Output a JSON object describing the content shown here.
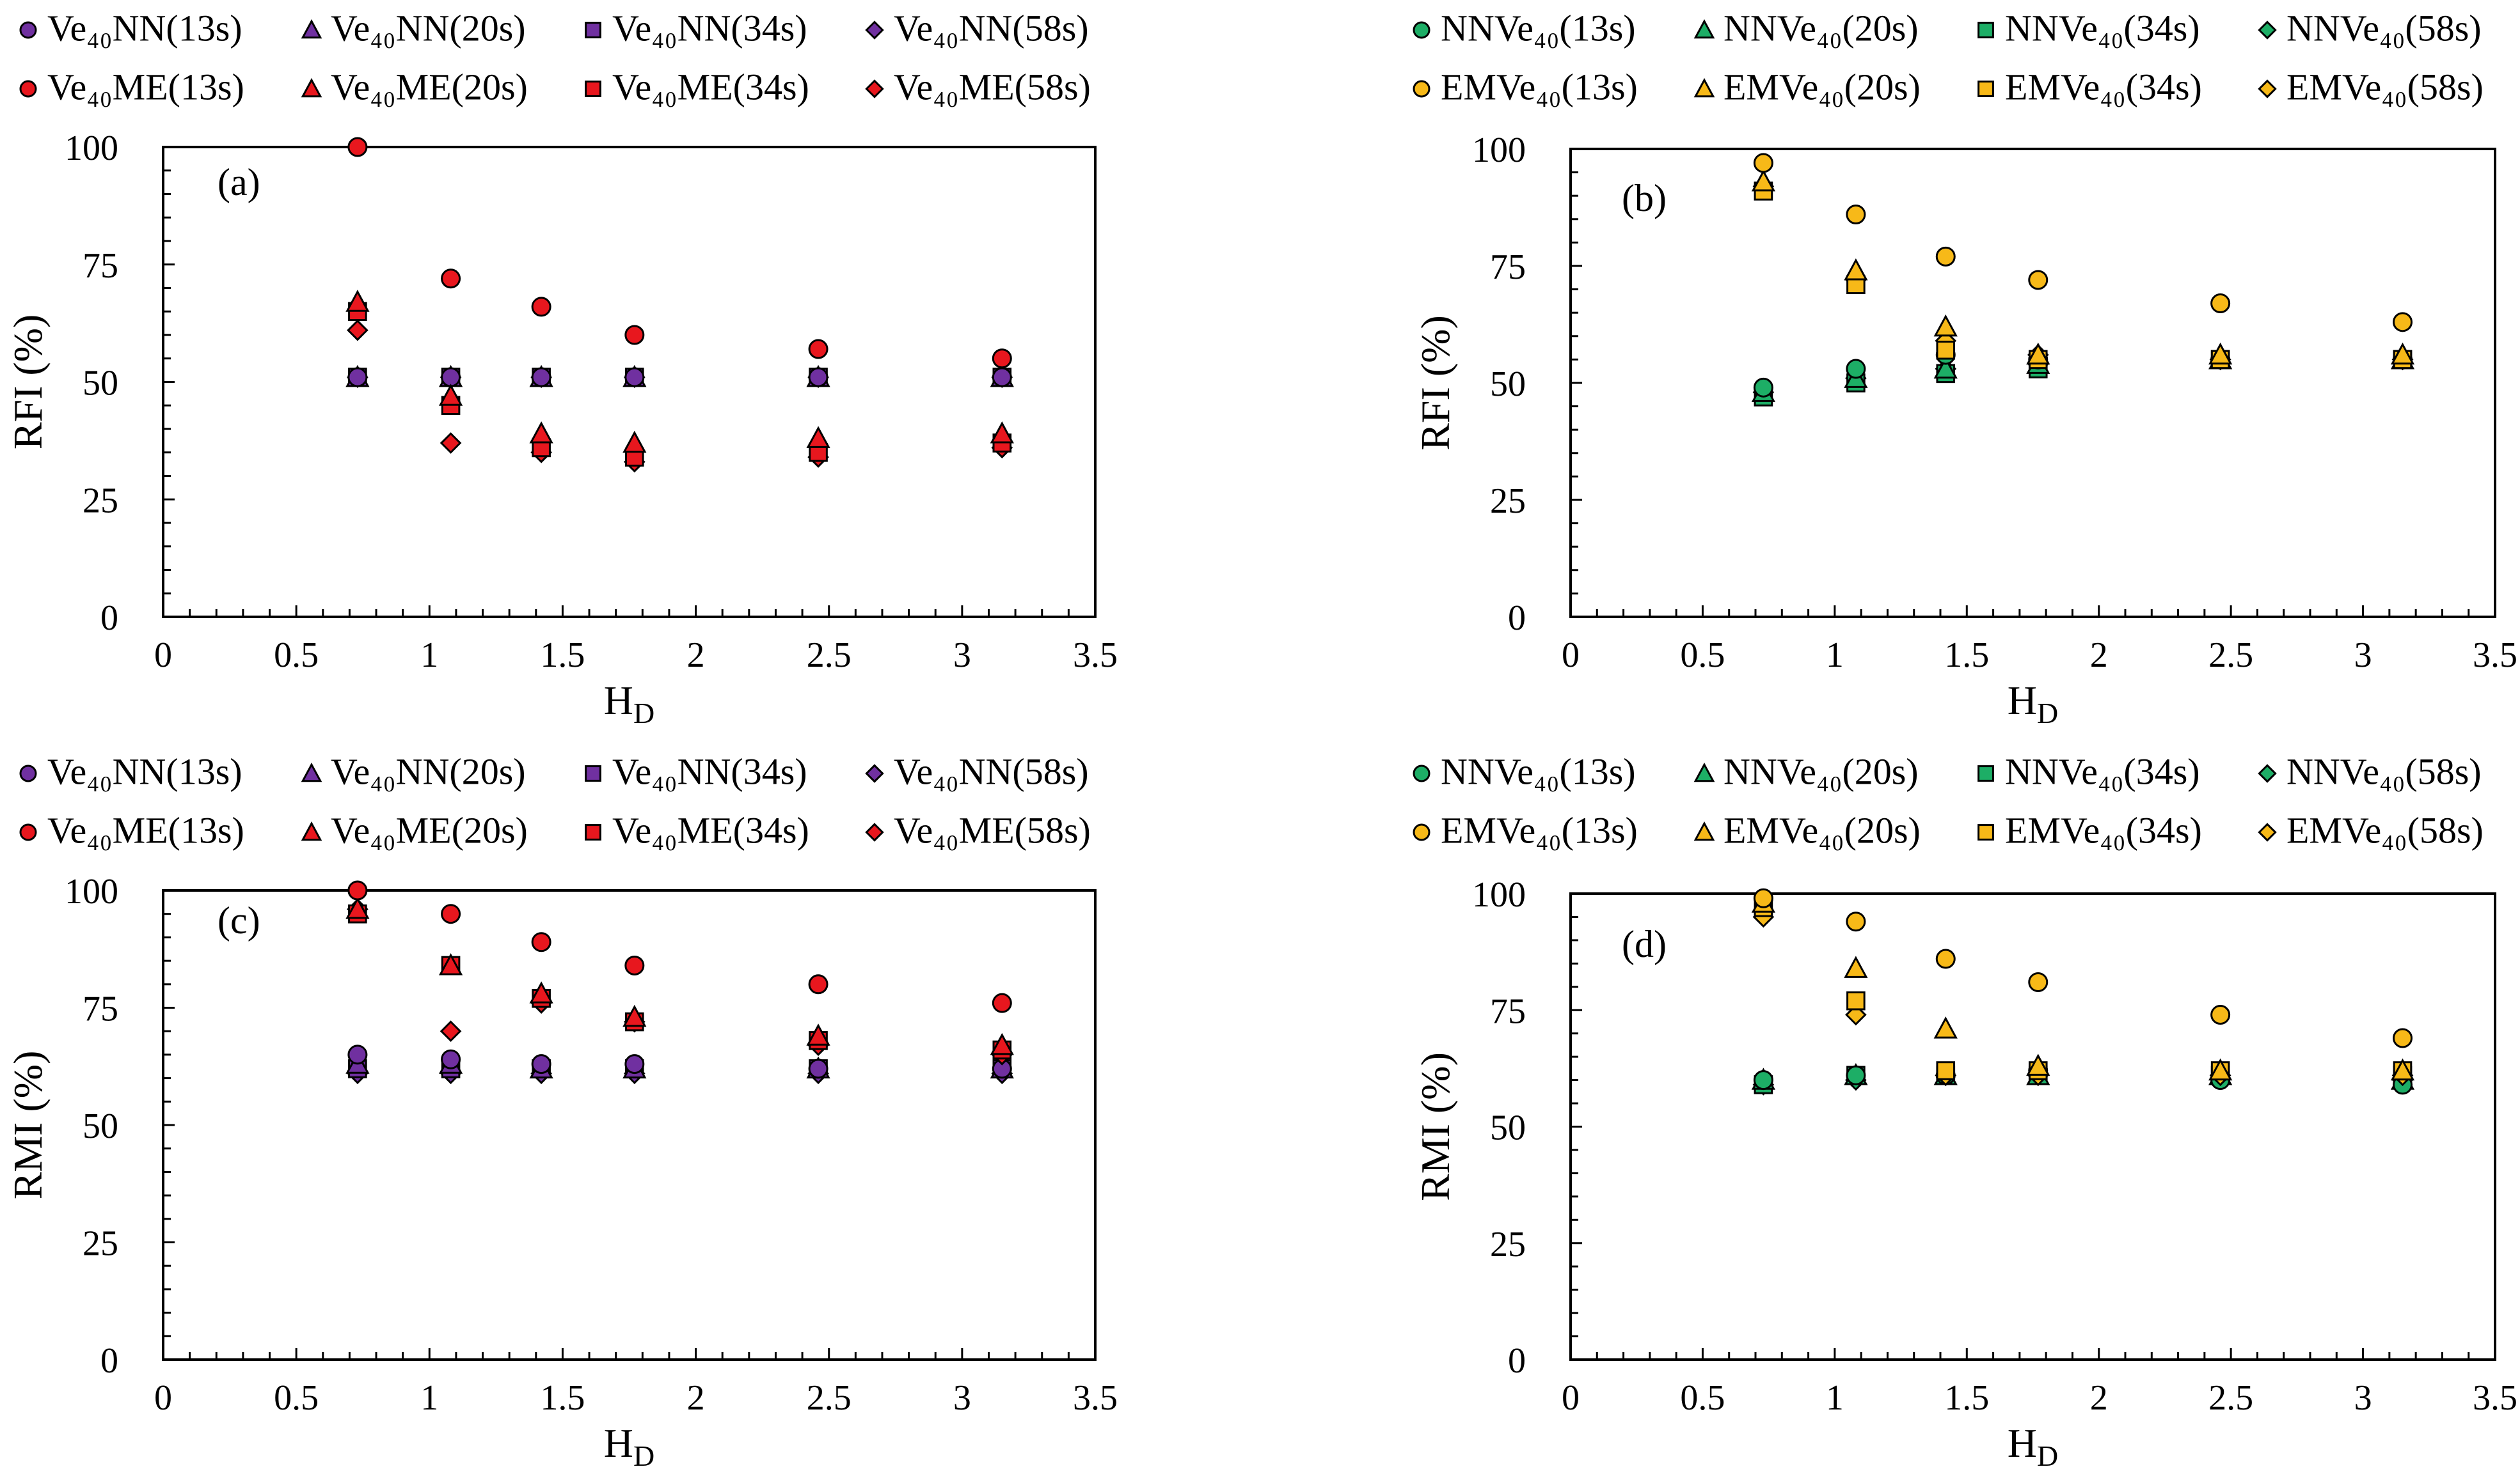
{
  "legend_markers": {
    "13s": "circle-marker",
    "20s": "triangle-marker",
    "34s": "square-marker",
    "58s": "diamond-marker"
  },
  "colors": {
    "purple": "#7030A0",
    "red": "#E8171E",
    "green": "#1DAE66",
    "yellow": "#F7B918",
    "stroke": "#000000"
  },
  "chart_data": [
    {
      "type": "scatter",
      "panel_label": "(a)",
      "xlabel": "H",
      "xlabel_sub": "D",
      "ylabel": "RFI (%)",
      "xlim": [
        0,
        3.5
      ],
      "ylim": [
        0,
        100
      ],
      "x_ticks": [
        "0",
        "0.5",
        "1",
        "1.5",
        "2",
        "2.5",
        "3",
        "3.5"
      ],
      "y_ticks": [
        "0",
        "25",
        "50",
        "75",
        "100"
      ],
      "x": [
        0.73,
        1.08,
        1.42,
        1.77,
        2.46,
        3.15
      ],
      "series": [
        {
          "name": "Ve₄₀NN(13s)",
          "marker": "circle",
          "color": "purple",
          "values": [
            51,
            51,
            51,
            51,
            51,
            51
          ]
        },
        {
          "name": "Ve₄₀NN(20s)",
          "marker": "triangle",
          "color": "purple",
          "values": [
            51,
            51,
            51,
            51,
            51,
            51
          ]
        },
        {
          "name": "Ve₄₀NN(34s)",
          "marker": "square",
          "color": "purple",
          "values": [
            51,
            51,
            51,
            51,
            51,
            51
          ]
        },
        {
          "name": "Ve₄₀NN(58s)",
          "marker": "diamond",
          "color": "purple",
          "values": [
            51,
            51,
            51,
            51,
            51,
            51
          ]
        },
        {
          "name": "Ve₄₀ME(13s)",
          "marker": "circle",
          "color": "red",
          "values": [
            100,
            72,
            66,
            60,
            57,
            55
          ]
        },
        {
          "name": "Ve₄₀ME(20s)",
          "marker": "triangle",
          "color": "red",
          "values": [
            67,
            47,
            39,
            37,
            38,
            39
          ]
        },
        {
          "name": "Ve₄₀ME(34s)",
          "marker": "square",
          "color": "red",
          "values": [
            65,
            45,
            36,
            34,
            35,
            37
          ]
        },
        {
          "name": "Ve₄₀ME(58s)",
          "marker": "diamond",
          "color": "red",
          "values": [
            61,
            37,
            35,
            33,
            34,
            36
          ]
        }
      ]
    },
    {
      "type": "scatter",
      "panel_label": "(b)",
      "xlabel": "H",
      "xlabel_sub": "D",
      "ylabel": "RFI (%)",
      "xlim": [
        0,
        3.5
      ],
      "ylim": [
        0,
        100
      ],
      "x_ticks": [
        "0",
        "0.5",
        "1",
        "1.5",
        "2",
        "2.5",
        "3",
        "3.5"
      ],
      "y_ticks": [
        "0",
        "25",
        "50",
        "75",
        "100"
      ],
      "x": [
        0.73,
        1.08,
        1.42,
        1.77,
        2.46,
        3.15
      ],
      "series": [
        {
          "name": "NNVe₄₀(13s)",
          "marker": "circle",
          "color": "green",
          "values": [
            49,
            53,
            56,
            55,
            55,
            55
          ]
        },
        {
          "name": "NNVe₄₀(20s)",
          "marker": "triangle",
          "color": "green",
          "values": [
            48,
            51,
            53,
            54,
            55,
            55
          ]
        },
        {
          "name": "NNVe₄₀(34s)",
          "marker": "square",
          "color": "green",
          "values": [
            47,
            50,
            52,
            53,
            55,
            55
          ]
        },
        {
          "name": "NNVe₄₀(58s)",
          "marker": "diamond",
          "color": "green",
          "values": [
            48,
            51,
            53,
            54,
            55,
            55
          ]
        },
        {
          "name": "EMVe₄₀(13s)",
          "marker": "circle",
          "color": "yellow",
          "values": [
            97,
            86,
            77,
            72,
            67,
            63
          ]
        },
        {
          "name": "EMVe₄₀(20s)",
          "marker": "triangle",
          "color": "yellow",
          "values": [
            93,
            74,
            62,
            56,
            56,
            56
          ]
        },
        {
          "name": "EMVe₄₀(34s)",
          "marker": "square",
          "color": "yellow",
          "values": [
            91,
            71,
            57,
            55,
            55,
            55
          ]
        },
        {
          "name": "EMVe₄₀(58s)",
          "marker": "diamond",
          "color": "yellow",
          "values": [
            92,
            72,
            59,
            56,
            55,
            55
          ]
        }
      ]
    },
    {
      "type": "scatter",
      "panel_label": "(c)",
      "xlabel": "H",
      "xlabel_sub": "D",
      "ylabel": "RMI (%)",
      "xlim": [
        0,
        3.5
      ],
      "ylim": [
        0,
        100
      ],
      "x_ticks": [
        "0",
        "0.5",
        "1",
        "1.5",
        "2",
        "2.5",
        "3",
        "3.5"
      ],
      "y_ticks": [
        "0",
        "25",
        "50",
        "75",
        "100"
      ],
      "x": [
        0.73,
        1.08,
        1.42,
        1.77,
        2.46,
        3.15
      ],
      "series": [
        {
          "name": "Ve₄₀NN(13s)",
          "marker": "circle",
          "color": "purple",
          "values": [
            65,
            64,
            63,
            63,
            62,
            62
          ]
        },
        {
          "name": "Ve₄₀NN(20s)",
          "marker": "triangle",
          "color": "purple",
          "values": [
            63,
            63,
            62,
            62,
            62,
            62
          ]
        },
        {
          "name": "Ve₄₀NN(34s)",
          "marker": "square",
          "color": "purple",
          "values": [
            62,
            62,
            62,
            62,
            62,
            62
          ]
        },
        {
          "name": "Ve₄₀NN(58s)",
          "marker": "diamond",
          "color": "purple",
          "values": [
            61,
            61,
            61,
            61,
            61,
            61
          ]
        },
        {
          "name": "Ve₄₀ME(13s)",
          "marker": "circle",
          "color": "red",
          "values": [
            100,
            95,
            89,
            84,
            80,
            76
          ]
        },
        {
          "name": "Ve₄₀ME(20s)",
          "marker": "triangle",
          "color": "red",
          "values": [
            96,
            84,
            78,
            73,
            69,
            67
          ]
        },
        {
          "name": "Ve₄₀ME(34s)",
          "marker": "square",
          "color": "red",
          "values": [
            95,
            84,
            77,
            72,
            68,
            66
          ]
        },
        {
          "name": "Ve₄₀ME(58s)",
          "marker": "diamond",
          "color": "red",
          "values": [
            96,
            70,
            76,
            72,
            67,
            65
          ]
        }
      ]
    },
    {
      "type": "scatter",
      "panel_label": "(d)",
      "xlabel": "H",
      "xlabel_sub": "D",
      "ylabel": "RMI (%)",
      "xlim": [
        0,
        3.5
      ],
      "ylim": [
        0,
        100
      ],
      "x_ticks": [
        "0",
        "0.5",
        "1",
        "1.5",
        "2",
        "2.5",
        "3",
        "3.5"
      ],
      "y_ticks": [
        "0",
        "25",
        "50",
        "75",
        "100"
      ],
      "x": [
        0.73,
        1.08,
        1.42,
        1.77,
        2.46,
        3.15
      ],
      "series": [
        {
          "name": "NNVe₄₀(13s)",
          "marker": "circle",
          "color": "green",
          "values": [
            60,
            61,
            61,
            62,
            60,
            59
          ]
        },
        {
          "name": "NNVe₄₀(20s)",
          "marker": "triangle",
          "color": "green",
          "values": [
            60,
            61,
            61,
            61,
            61,
            60
          ]
        },
        {
          "name": "NNVe₄₀(34s)",
          "marker": "square",
          "color": "green",
          "values": [
            59,
            61,
            61,
            61,
            61,
            61
          ]
        },
        {
          "name": "NNVe₄₀(58s)",
          "marker": "diamond",
          "color": "green",
          "values": [
            59,
            60,
            61,
            61,
            61,
            60
          ]
        },
        {
          "name": "EMVe₄₀(13s)",
          "marker": "circle",
          "color": "yellow",
          "values": [
            99,
            94,
            86,
            81,
            74,
            69
          ]
        },
        {
          "name": "EMVe₄₀(20s)",
          "marker": "triangle",
          "color": "yellow",
          "values": [
            98,
            84,
            71,
            63,
            62,
            62
          ]
        },
        {
          "name": "EMVe₄₀(34s)",
          "marker": "square",
          "color": "yellow",
          "values": [
            97,
            77,
            62,
            62,
            62,
            62
          ]
        },
        {
          "name": "EMVe₄₀(58s)",
          "marker": "diamond",
          "color": "yellow",
          "values": [
            95,
            74,
            61,
            61,
            61,
            61
          ]
        }
      ]
    }
  ]
}
